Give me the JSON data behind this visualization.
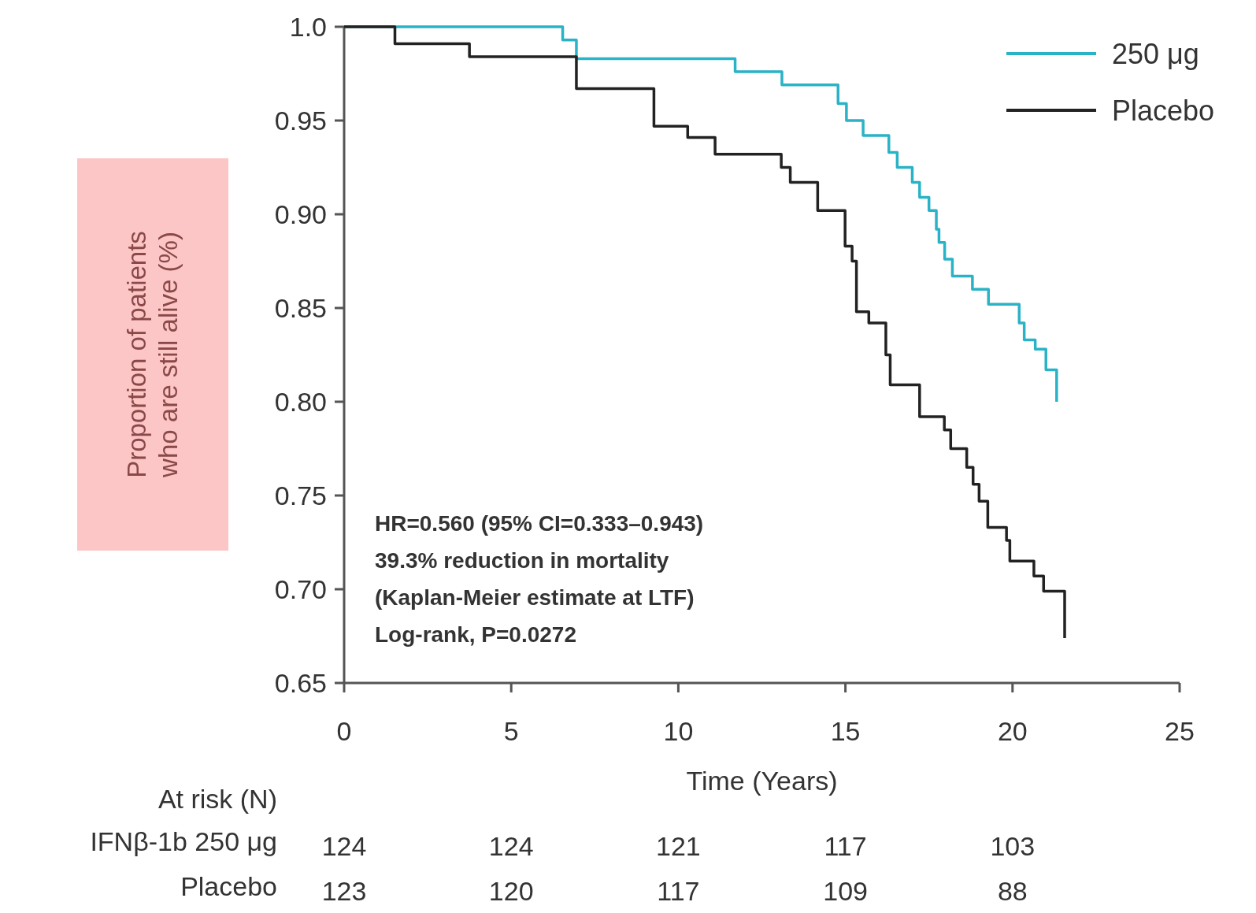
{
  "chart_data": {
    "type": "step",
    "xlabel": "Time (Years)",
    "ylabel": "Proportion of patients\nwho are still alive (%)",
    "xlim": [
      0,
      25
    ],
    "xticks": [
      0,
      5,
      10,
      15,
      20,
      25
    ],
    "ylim": [
      0.65,
      1.0
    ],
    "yticks": [
      {
        "value": 1.0,
        "label": "1.0"
      },
      0.95,
      {
        "value": 0.9,
        "label": "0.90"
      },
      0.85,
      {
        "value": 0.8,
        "label": "0.80"
      },
      0.75,
      {
        "value": 0.7,
        "label": "0.70"
      },
      0.65
    ],
    "grid": false,
    "legend": "top right",
    "line_style": "solid",
    "marker": "none",
    "series": [
      {
        "name": "250 μg",
        "color": "#2ab3c6",
        "x": [
          0,
          6.54,
          6.95,
          11.7,
          13.1,
          14.78,
          15.03,
          15.53,
          16.3,
          16.55,
          17.0,
          17.22,
          17.5,
          17.72,
          17.8,
          17.97,
          18.2,
          18.8,
          19.28,
          20.2,
          20.35,
          20.68,
          21.0,
          21.32
        ],
        "values": [
          1.0,
          0.993,
          0.983,
          0.976,
          0.969,
          0.959,
          0.95,
          0.942,
          0.933,
          0.925,
          0.917,
          0.909,
          0.902,
          0.892,
          0.885,
          0.876,
          0.867,
          0.86,
          0.852,
          0.842,
          0.833,
          0.828,
          0.817,
          0.8
        ]
      },
      {
        "name": "Placebo",
        "color": "#222222",
        "x": [
          0,
          1.52,
          3.75,
          6.95,
          9.27,
          10.28,
          11.1,
          13.08,
          13.35,
          14.17,
          14.99,
          15.2,
          15.33,
          15.7,
          16.21,
          16.34,
          17.22,
          17.96,
          18.15,
          18.63,
          18.82,
          19.0,
          19.26,
          19.82,
          19.92,
          20.64,
          20.93,
          21.56
        ],
        "values": [
          1.0,
          0.991,
          0.984,
          0.967,
          0.947,
          0.941,
          0.932,
          0.925,
          0.917,
          0.902,
          0.883,
          0.875,
          0.848,
          0.842,
          0.825,
          0.809,
          0.792,
          0.785,
          0.775,
          0.765,
          0.756,
          0.747,
          0.733,
          0.726,
          0.715,
          0.707,
          0.699,
          0.674
        ]
      }
    ],
    "annotations": [
      "HR=0.560 (95% CI=0.333–0.943)",
      "39.3% reduction in mortality",
      "(Kaplan-Meier estimate at LTF)",
      "Log-rank, P=0.0272",
      "At risk (N)",
      "IFNβ-1b 250 μg",
      "124",
      "124",
      "121",
      "117",
      "103",
      "Placebo",
      "123",
      "120",
      "117",
      "109",
      "88"
    ]
  }
}
